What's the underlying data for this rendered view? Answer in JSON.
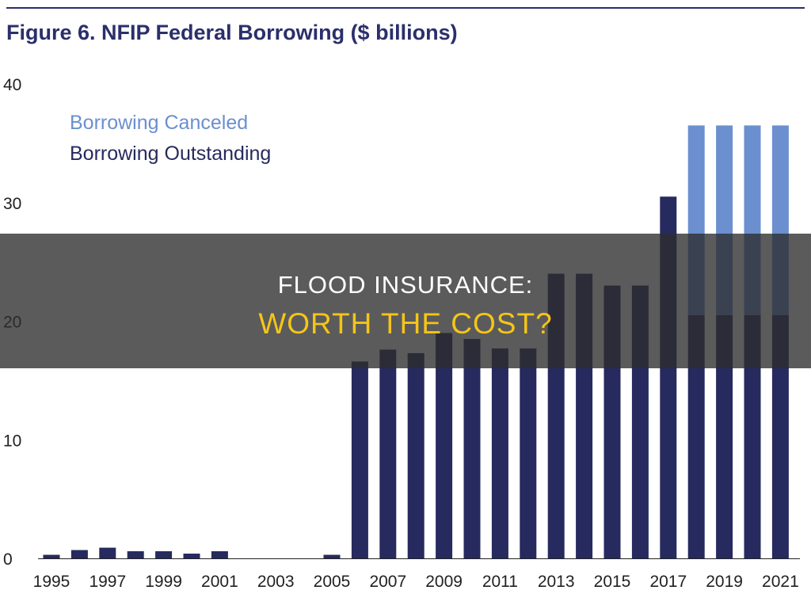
{
  "figure_title": "Figure 6. NFIP Federal Borrowing ($ billions)",
  "colors": {
    "outstanding": "#262a5e",
    "canceled": "#6b8fcf",
    "title": "#2b2f6b",
    "overlay_line2": "#f5c518"
  },
  "overlay": {
    "line1": "FLOOD INSURANCE:",
    "line2": "WORTH THE COST?"
  },
  "chart_data": {
    "type": "bar",
    "stacked": true,
    "title": "Figure 6. NFIP Federal Borrowing ($ billions)",
    "xlabel": "",
    "ylabel": "",
    "ylim": [
      0,
      40
    ],
    "yticks": [
      "0",
      "10",
      "20",
      "30",
      "40"
    ],
    "grid": false,
    "legend_position": "top-left",
    "categories": [
      1995,
      1996,
      1997,
      1998,
      1999,
      2000,
      2001,
      2002,
      2003,
      2004,
      2005,
      2006,
      2007,
      2008,
      2009,
      2010,
      2011,
      2012,
      2013,
      2014,
      2015,
      2016,
      2017,
      2018,
      2019,
      2020,
      2021
    ],
    "xtick_labels": [
      "1995",
      "1997",
      "1999",
      "2001",
      "2003",
      "2005",
      "2007",
      "2009",
      "2011",
      "2013",
      "2015",
      "2017",
      "2019",
      "2021"
    ],
    "series": [
      {
        "name": "Borrowing Outstanding",
        "values": [
          0.3,
          0.7,
          0.9,
          0.6,
          0.6,
          0.4,
          0.6,
          0,
          0,
          0,
          0.3,
          16.6,
          17.6,
          17.3,
          19.0,
          18.5,
          17.7,
          17.7,
          24.0,
          24.0,
          23.0,
          23.0,
          30.5,
          20.5,
          20.5,
          20.5,
          20.5
        ]
      },
      {
        "name": "Borrowing Canceled",
        "values": [
          0,
          0,
          0,
          0,
          0,
          0,
          0,
          0,
          0,
          0,
          0,
          0,
          0,
          0,
          0,
          0,
          0,
          0,
          0,
          0,
          0,
          0,
          0,
          16.0,
          16.0,
          16.0,
          16.0
        ]
      }
    ]
  }
}
